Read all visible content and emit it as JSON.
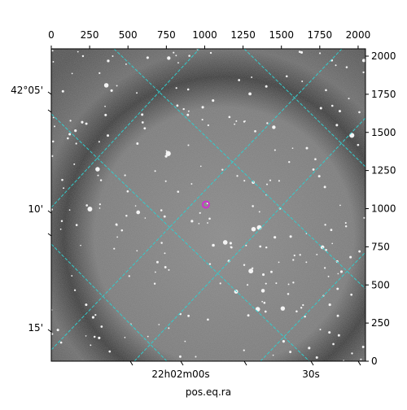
{
  "chart_data": {
    "type": "image",
    "xlabel": "pos.eq.ra",
    "xlim": [
      0,
      2048
    ],
    "xticks": [
      0,
      250,
      500,
      750,
      1000,
      1250,
      1500,
      1750,
      2000
    ],
    "ylim": [
      0,
      2048
    ],
    "yticks": [
      0,
      250,
      500,
      750,
      1000,
      1250,
      1500,
      1750,
      2000
    ],
    "ra_labels": [
      "22h02m00s",
      "30s"
    ],
    "dec_labels": [
      "42°05'",
      "10'",
      "15'"
    ],
    "marker": {
      "x": 1008,
      "y": 1027,
      "color": "#cc33cc"
    },
    "grid_color": "#33cccc"
  }
}
